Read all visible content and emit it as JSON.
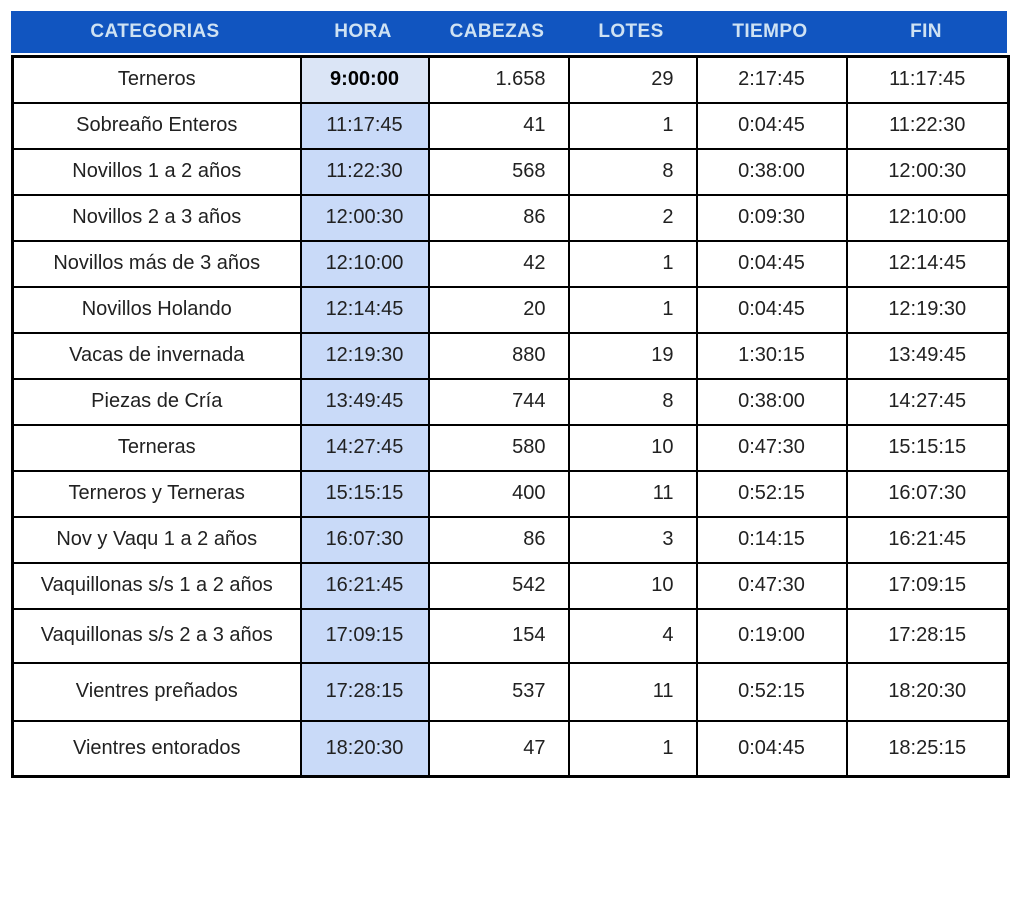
{
  "colors": {
    "header_bg": "#1155c0",
    "header_text": "#cfe2f3",
    "hora_highlight_bg": "#c9daf8",
    "hora_first_row_bg": "#dbe5f6",
    "border": "#000000",
    "body_text": "#212121"
  },
  "table": {
    "columns": [
      "CATEGORIAS",
      "HORA",
      "CABEZAS",
      "LOTES",
      "TIEMPO",
      "FIN"
    ],
    "fields": [
      "categoria",
      "hora",
      "cabezas",
      "lotes",
      "tiempo",
      "fin"
    ],
    "rows": [
      [
        "Terneros",
        "9:00:00",
        "1.658",
        "29",
        "2:17:45",
        "11:17:45"
      ],
      [
        "Sobreaño Enteros",
        "11:17:45",
        "41",
        "1",
        "0:04:45",
        "11:22:30"
      ],
      [
        "Novillos 1 a 2 años",
        "11:22:30",
        "568",
        "8",
        "0:38:00",
        "12:00:30"
      ],
      [
        "Novillos 2 a 3 años",
        "12:00:30",
        "86",
        "2",
        "0:09:30",
        "12:10:00"
      ],
      [
        "Novillos más de 3 años",
        "12:10:00",
        "42",
        "1",
        "0:04:45",
        "12:14:45"
      ],
      [
        "Novillos Holando",
        "12:14:45",
        "20",
        "1",
        "0:04:45",
        "12:19:30"
      ],
      [
        "Vacas de invernada",
        "12:19:30",
        "880",
        "19",
        "1:30:15",
        "13:49:45"
      ],
      [
        "Piezas de Cría",
        "13:49:45",
        "744",
        "8",
        "0:38:00",
        "14:27:45"
      ],
      [
        "Terneras",
        "14:27:45",
        "580",
        "10",
        "0:47:30",
        "15:15:15"
      ],
      [
        "Terneros y Terneras",
        "15:15:15",
        "400",
        "11",
        "0:52:15",
        "16:07:30"
      ],
      [
        "Nov y Vaqu 1 a 2 años",
        "16:07:30",
        "86",
        "3",
        "0:14:15",
        "16:21:45"
      ],
      [
        "Vaquillonas s/s 1 a 2 años",
        "16:21:45",
        "542",
        "10",
        "0:47:30",
        "17:09:15"
      ],
      [
        "Vaquillonas s/s 2 a 3 años",
        "17:09:15",
        "154",
        "4",
        "0:19:00",
        "17:28:15"
      ],
      [
        "Vientres preñados",
        "17:28:15",
        "537",
        "11",
        "0:52:15",
        "18:20:30"
      ],
      [
        "Vientres entorados",
        "18:20:30",
        "47",
        "1",
        "0:04:45",
        "18:25:15"
      ]
    ]
  }
}
